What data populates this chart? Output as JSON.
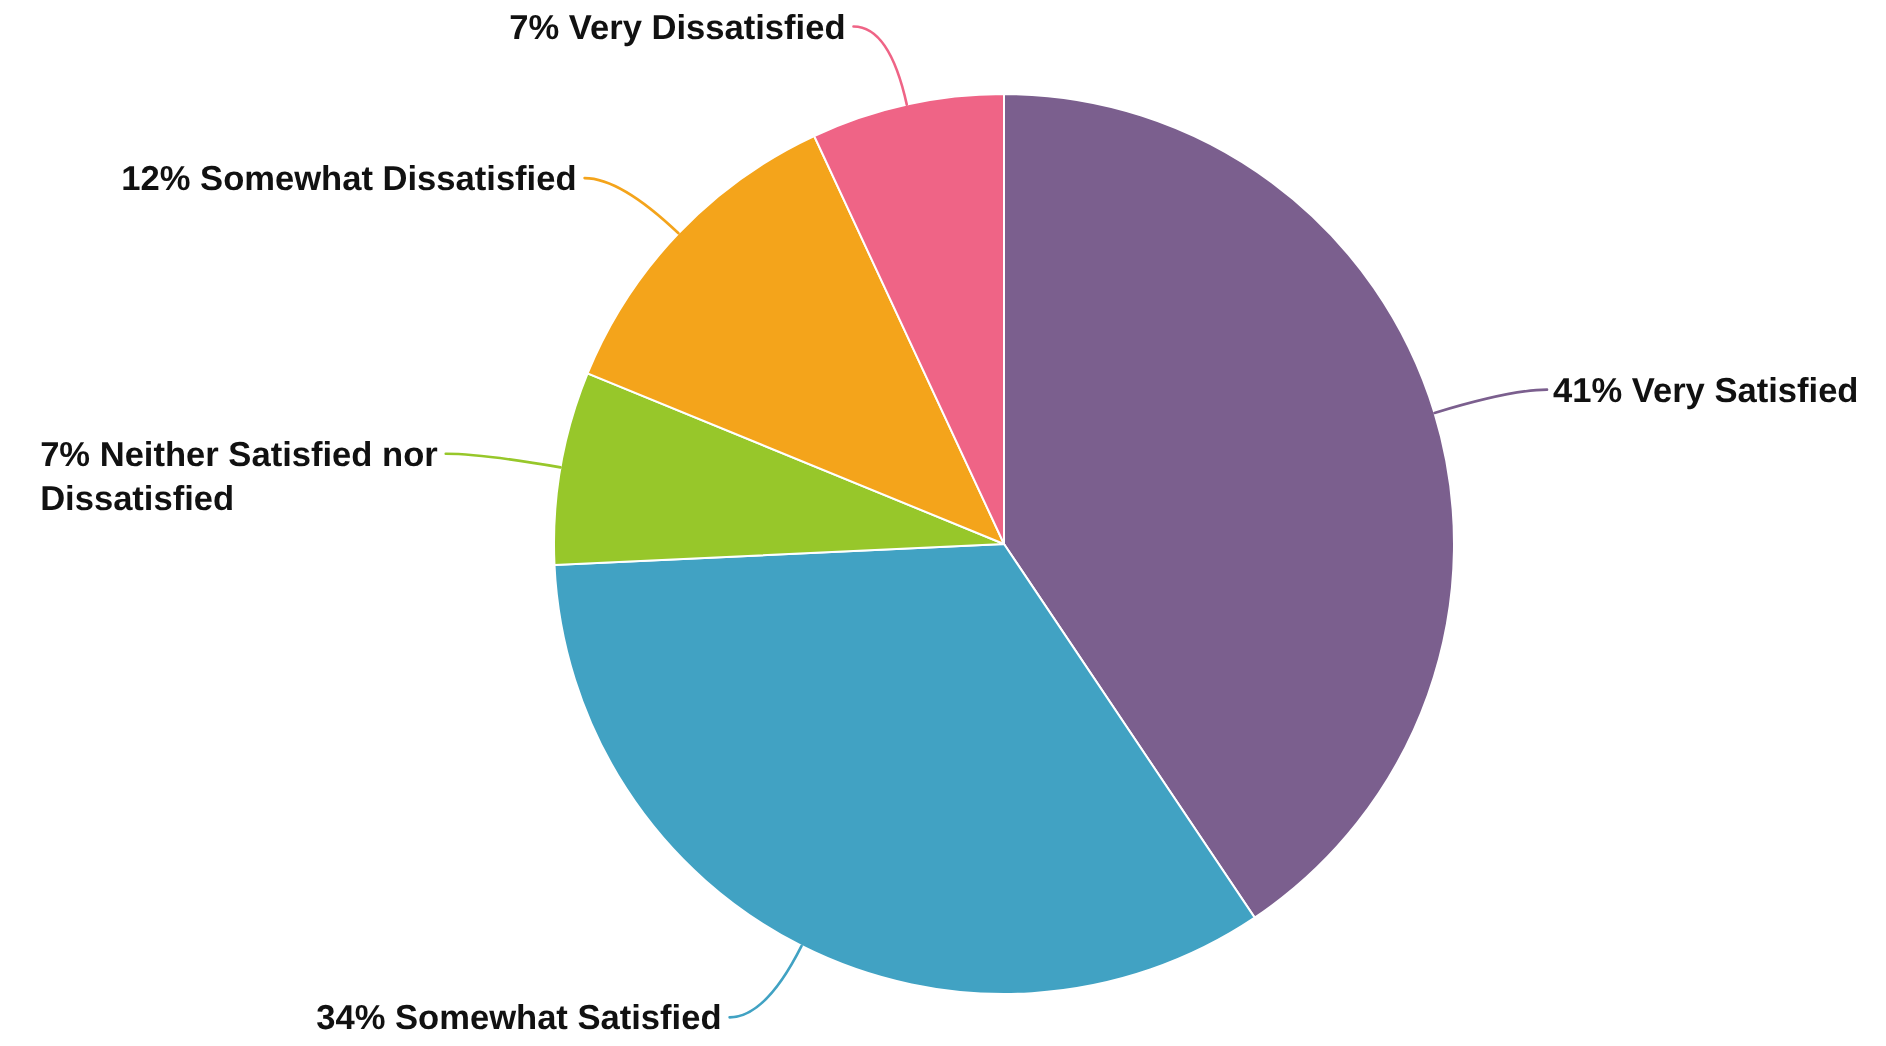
{
  "chart_data": {
    "type": "pie",
    "categories": [
      "Very Satisfied",
      "Somewhat Satisfied",
      "Neither Satisfied nor Dissatisfied",
      "Somewhat Dissatisfied",
      "Very Dissatisfied"
    ],
    "values": [
      41,
      34,
      7,
      12,
      7
    ],
    "colors": [
      "#7b5f8e",
      "#41a2c3",
      "#97c72a",
      "#f4a41b",
      "#ef6486"
    ],
    "value_labels": [
      "41%",
      "34%",
      "7%",
      "12%",
      "7%"
    ]
  }
}
